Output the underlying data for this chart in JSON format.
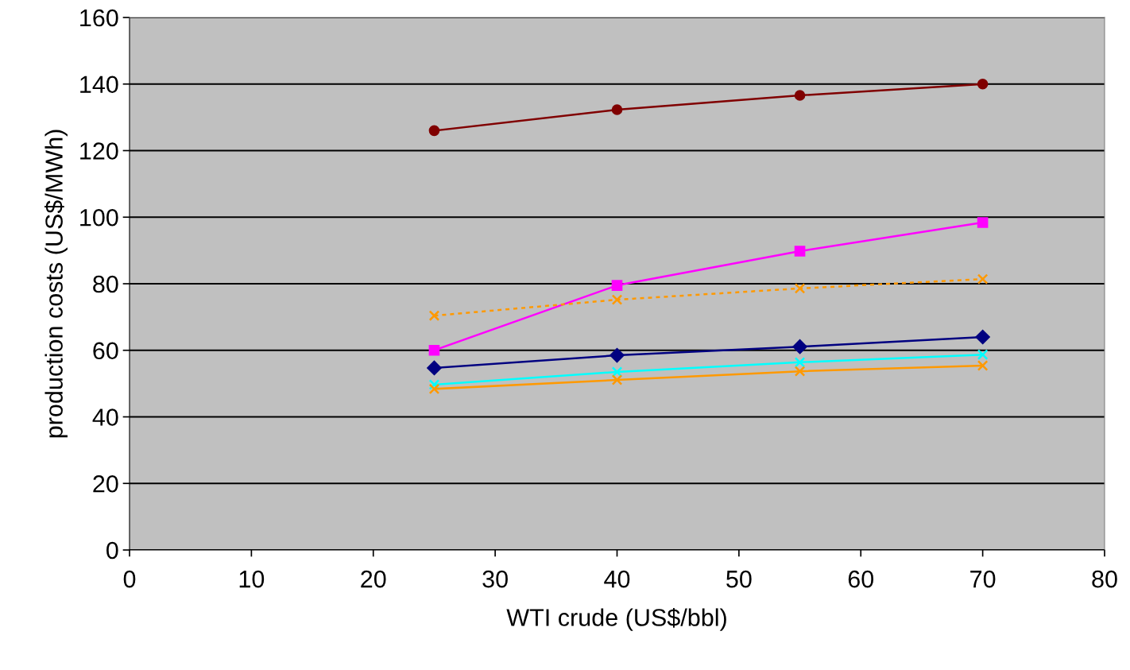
{
  "chart_data": {
    "type": "line",
    "xlabel": "WTI crude (US$/bbl)",
    "ylabel": "production costs (US$/MWh)",
    "x": [
      25,
      40,
      55,
      70
    ],
    "series": [
      {
        "color": "#800000",
        "marker": "circle",
        "line_style": "solid",
        "values": [
          126,
          132.3,
          136.6,
          140
        ]
      },
      {
        "color": "#ff00ff",
        "marker": "square",
        "line_style": "solid",
        "values": [
          60,
          79.5,
          89.8,
          98.4
        ]
      },
      {
        "color": "#ff9900",
        "marker": "cross",
        "line_style": "dotted",
        "values": [
          70.4,
          75.2,
          78.6,
          81.4
        ]
      },
      {
        "color": "#000080",
        "marker": "diamond",
        "line_style": "solid",
        "values": [
          54.7,
          58.5,
          61.1,
          64
        ]
      },
      {
        "color": "#00ffff",
        "marker": "cross",
        "line_style": "solid",
        "values": [
          49.7,
          53.5,
          56.4,
          58.7
        ]
      },
      {
        "color": "#ff9900",
        "marker": "cross",
        "line_style": "solid",
        "values": [
          48.4,
          51.1,
          53.7,
          55.4
        ]
      }
    ],
    "xlim": [
      0,
      80
    ],
    "xticks": [
      0,
      10,
      20,
      30,
      40,
      50,
      60,
      70,
      80
    ],
    "ylim": [
      0,
      160
    ],
    "yticks": [
      0,
      20,
      40,
      60,
      80,
      100,
      120,
      140,
      160
    ],
    "grid": "y",
    "legend": false
  }
}
